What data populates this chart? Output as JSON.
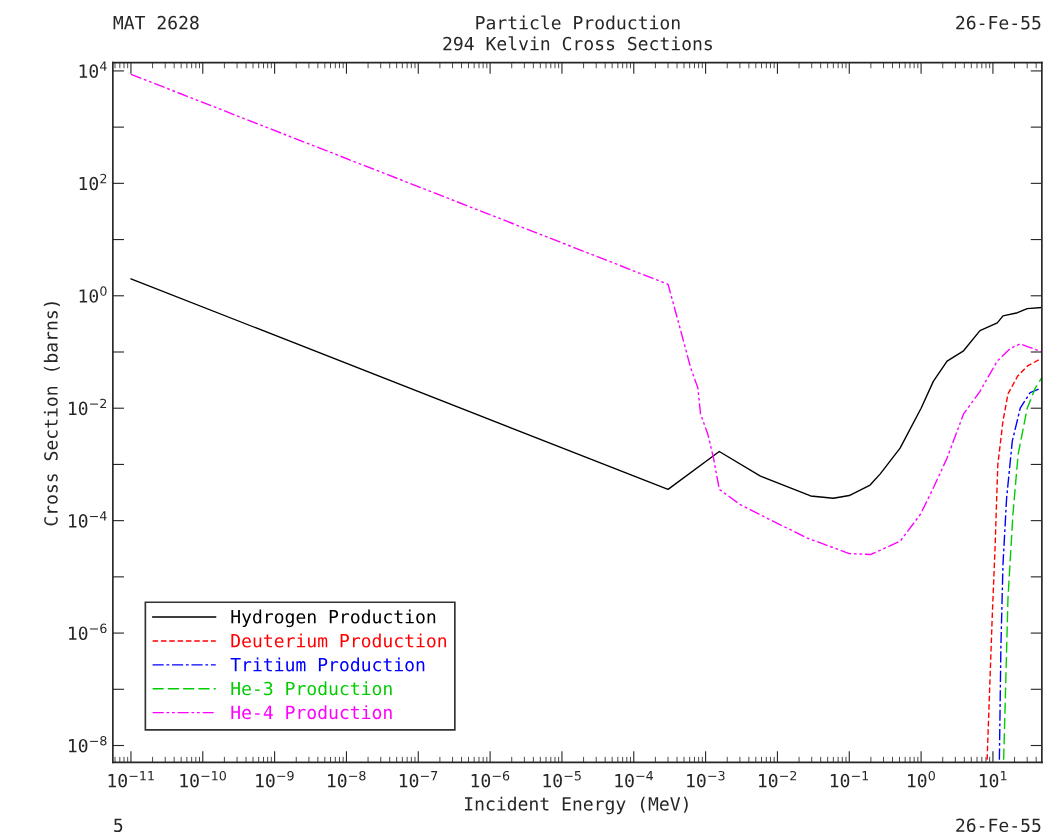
{
  "chart_data": {
    "type": "line",
    "title": "Particle Production",
    "subtitle": "294 Kelvin Cross Sections",
    "xlabel": "Incident Energy (MeV)",
    "ylabel": "Cross Section (barns)",
    "annotations": [
      "MAT 2628",
      "26-Fe-55",
      "5",
      "26-Fe-55"
    ],
    "log": "xy",
    "grid": false,
    "legend": "bottom left",
    "marker": "none",
    "xlim": [
      5.6e-12,
      48
    ],
    "ylim": [
      5e-09,
      14000
    ],
    "xticks": [
      {
        "value": 1e-11,
        "label": "10$^{−11}$"
      },
      {
        "value": 1e-10,
        "label": "10$^{−10}$"
      },
      {
        "value": 1e-09,
        "label": "10$^{−9}$"
      },
      {
        "value": 1e-08,
        "label": "10$^{−8}$"
      },
      {
        "value": 1e-07,
        "label": "10$^{−7}$"
      },
      {
        "value": 1e-06,
        "label": "10$^{−6}$"
      },
      {
        "value": 1e-05,
        "label": "10$^{−5}$"
      },
      {
        "value": 0.0001,
        "label": "10$^{−4}$"
      },
      {
        "value": 0.001,
        "label": "10$^{−3}$"
      },
      {
        "value": 0.01,
        "label": "10$^{−2}$"
      },
      {
        "value": 0.1,
        "label": "10$^{−1}$"
      },
      {
        "value": 1,
        "label": "10$^{0}$"
      },
      {
        "value": 10,
        "label": "10$^{1}$"
      }
    ],
    "yticks": [
      {
        "value": 1e-08,
        "label": "10$^{−8}$"
      },
      {
        "value": 1e-07,
        "label": null
      },
      {
        "value": 1e-06,
        "label": "10$^{−6}$"
      },
      {
        "value": 1e-05,
        "label": null
      },
      {
        "value": 0.0001,
        "label": "10$^{−4}$"
      },
      {
        "value": 0.001,
        "label": null
      },
      {
        "value": 0.01,
        "label": "10$^{−2}$"
      },
      {
        "value": 0.1,
        "label": null
      },
      {
        "value": 1,
        "label": "10$^{0}$"
      },
      {
        "value": 10,
        "label": null
      },
      {
        "value": 100,
        "label": "10$^{2}$"
      },
      {
        "value": 1000,
        "label": null
      },
      {
        "value": 10000,
        "label": "10$^{4}$"
      }
    ],
    "series": [
      {
        "name": "Hydrogen Production",
        "color": "#000000",
        "line_style": "solid",
        "x": [
          1e-11,
          0.0003,
          0.00155,
          0.0058,
          0.029,
          0.06,
          0.1,
          0.195,
          0.27,
          0.51,
          1.0,
          1.48,
          2.3,
          3.9,
          6.6,
          11.5,
          13.8,
          22,
          30,
          48
        ],
        "values": [
          2.0,
          0.00036,
          0.0017,
          0.00062,
          0.000275,
          0.00025,
          0.00028,
          0.00043,
          0.00068,
          0.00195,
          0.01,
          0.03,
          0.069,
          0.105,
          0.24,
          0.33,
          0.44,
          0.5,
          0.59,
          0.62
        ]
      },
      {
        "name": "Deuterium Production",
        "color": "#ff0000",
        "line_style": "dashed",
        "x": [
          8.3,
          9.8,
          10.7,
          11.7,
          13.8,
          16.2,
          22,
          30,
          48
        ],
        "values": [
          5.6e-09,
          2.1e-06,
          3.2e-05,
          0.001,
          0.0059,
          0.018,
          0.037,
          0.056,
          0.078
        ]
      },
      {
        "name": "Tritium Production",
        "color": "#0000ff",
        "line_style": "dashdot",
        "x": [
          12.3,
          12.9,
          13.8,
          15.5,
          18.6,
          24,
          33,
          48
        ],
        "values": [
          5.6e-09,
          5.4e-07,
          1.66e-05,
          0.00025,
          0.0026,
          0.01,
          0.019,
          0.023
        ]
      },
      {
        "name": "He-3 Production",
        "color": "#00cc00",
        "line_style": "longdash",
        "x": [
          14.1,
          15.1,
          16.2,
          19,
          22.4,
          30,
          39,
          48
        ],
        "values": [
          5.6e-09,
          1.4e-07,
          4.2e-06,
          0.00013,
          0.0015,
          0.01,
          0.023,
          0.035
        ]
      },
      {
        "name": "He-4 Production",
        "color": "#ff00ff",
        "line_style": "dashdotdot",
        "x": [
          1e-11,
          0.0003,
          0.00045,
          0.00062,
          0.00078,
          0.00085,
          0.00107,
          0.00129,
          0.00155,
          0.003,
          0.0072,
          0.026,
          0.1,
          0.2,
          0.51,
          0.98,
          1.48,
          2.3,
          3.9,
          6.6,
          11.5,
          17.4,
          24,
          33,
          48
        ],
        "values": [
          8700,
          1.6,
          0.24,
          0.052,
          0.023,
          0.0079,
          0.0035,
          0.00129,
          0.00036,
          0.000195,
          0.00011,
          4.9e-05,
          2.6e-05,
          2.5e-05,
          4.3e-05,
          0.00013,
          0.00038,
          0.0013,
          0.0079,
          0.02,
          0.069,
          0.115,
          0.14,
          0.12,
          0.1
        ]
      }
    ]
  }
}
